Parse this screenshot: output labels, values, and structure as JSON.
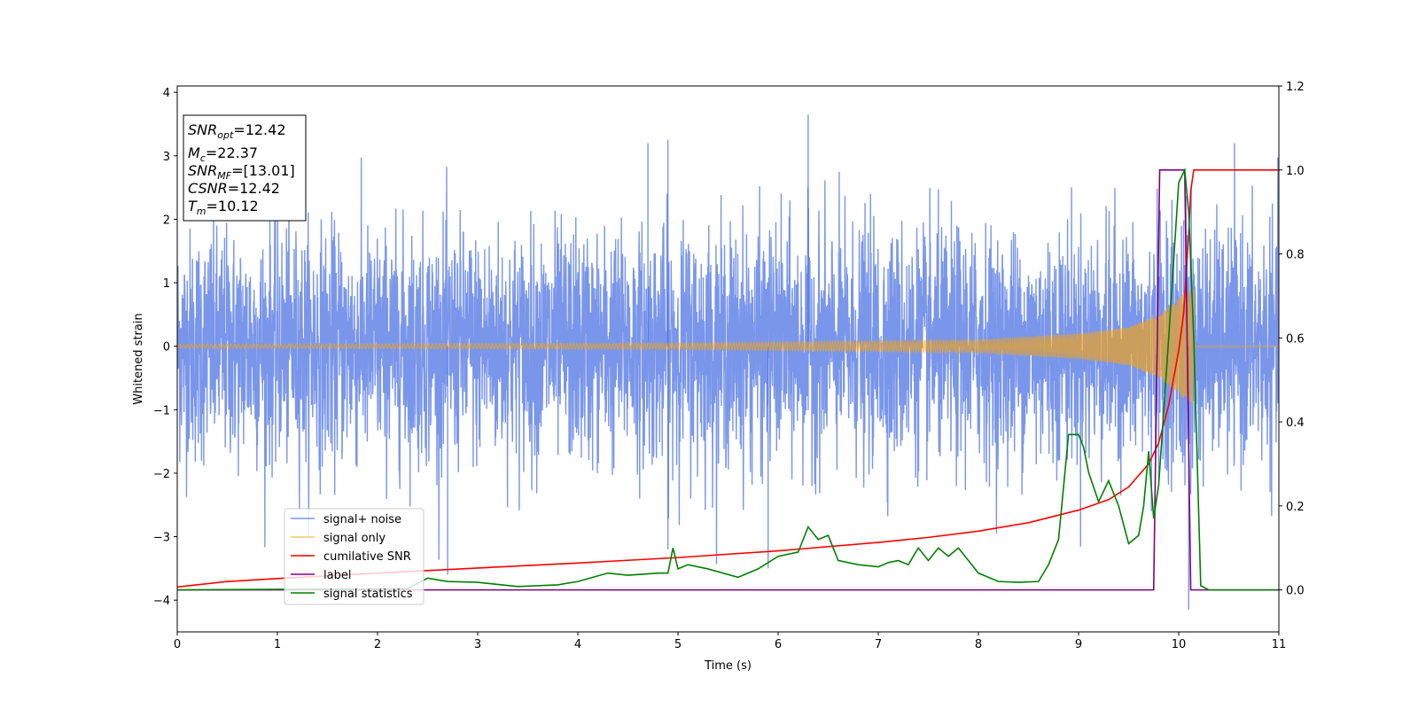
{
  "chart_data": {
    "type": "line",
    "xlabel": "Time (s)",
    "ylabel": "Whitened strain",
    "xlim": [
      0,
      11
    ],
    "ylim": [
      -4.5,
      4.1
    ],
    "y2lim": [
      -0.1,
      1.2
    ],
    "x_ticks": [
      0,
      1,
      2,
      3,
      4,
      5,
      6,
      7,
      8,
      9,
      10,
      11
    ],
    "x_tick_labels": [
      "0",
      "1",
      "2",
      "3",
      "4",
      "5",
      "6",
      "7",
      "8",
      "9",
      "10",
      "11"
    ],
    "y_ticks": [
      4,
      3,
      2,
      1,
      0,
      -1,
      -2,
      -3,
      -4
    ],
    "y_tick_labels": [
      "4",
      "3",
      "2",
      "1",
      "0",
      "−1",
      "−2",
      "−3",
      "−4"
    ],
    "y2_ticks": [
      1.2,
      1.0,
      0.8,
      0.6,
      0.4,
      0.2,
      0.0
    ],
    "y2_tick_labels": [
      "1.2",
      "1.0",
      "0.8",
      "0.6",
      "0.4",
      "0.2",
      "0.0"
    ],
    "grid": false,
    "legend_placement": "lower-left",
    "annotation": {
      "snr_opt": {
        "base": "SNR",
        "sub": "opt",
        "value": "=12.42"
      },
      "mc": {
        "base": "M",
        "sub": "c",
        "value": "=22.37"
      },
      "snr_mf": {
        "base": "SNR",
        "sub": "MF",
        "value": "=[13.01]"
      },
      "csnr": {
        "base": "CSNR",
        "value": "=12.42"
      },
      "tm": {
        "base": "T",
        "sub": "m",
        "value": "=10.12"
      }
    },
    "series": [
      {
        "name": "signal+ noise",
        "axis": "left",
        "color": "#4169e1",
        "opacity": 0.7,
        "style": "dense noisy trace, approximately zero-mean",
        "envelope_y": [
          -2.3,
          2.4
        ],
        "peak_points": [
          [
            6.3,
            3.65
          ],
          [
            4.9,
            3.25
          ],
          [
            4.7,
            3.2
          ],
          [
            10.1,
            -4.15
          ],
          [
            2.7,
            -3.6
          ],
          [
            4.9,
            -3.2
          ],
          [
            5.9,
            -3.5
          ]
        ]
      },
      {
        "name": "signal only",
        "axis": "left",
        "color": "#ffa500",
        "opacity": 0.6,
        "style": "chirp that grows in amplitude and frequency, ending at about 10.15 s",
        "amplitude_points": [
          [
            0,
            0.03
          ],
          [
            5,
            0.05
          ],
          [
            8,
            0.1
          ],
          [
            9,
            0.2
          ],
          [
            9.5,
            0.3
          ],
          [
            9.8,
            0.5
          ],
          [
            10.0,
            0.75
          ],
          [
            10.1,
            0.9
          ],
          [
            10.15,
            0.9
          ]
        ]
      },
      {
        "name": "cumilative SNR",
        "axis": "right",
        "color": "#ff0000",
        "points": [
          [
            0,
            0.007
          ],
          [
            0.5,
            0.02
          ],
          [
            1,
            0.027
          ],
          [
            2,
            0.04
          ],
          [
            3,
            0.052
          ],
          [
            4,
            0.064
          ],
          [
            5,
            0.077
          ],
          [
            6,
            0.093
          ],
          [
            7,
            0.113
          ],
          [
            7.5,
            0.125
          ],
          [
            8,
            0.14
          ],
          [
            8.5,
            0.16
          ],
          [
            9,
            0.19
          ],
          [
            9.3,
            0.215
          ],
          [
            9.5,
            0.245
          ],
          [
            9.7,
            0.3
          ],
          [
            9.8,
            0.35
          ],
          [
            9.9,
            0.44
          ],
          [
            10.0,
            0.57
          ],
          [
            10.05,
            0.66
          ],
          [
            10.1,
            0.85
          ],
          [
            10.12,
            0.95
          ],
          [
            10.15,
            1.0
          ],
          [
            11,
            1.0
          ]
        ]
      },
      {
        "name": "label",
        "axis": "right",
        "color": "#800080",
        "points": [
          [
            0,
            0.0
          ],
          [
            9.75,
            0.0
          ],
          [
            9.81,
            1.0
          ],
          [
            10.06,
            1.0
          ],
          [
            10.12,
            0.0
          ],
          [
            11,
            0.0
          ]
        ]
      },
      {
        "name": "signal statistics",
        "axis": "right",
        "color": "#008000",
        "points": [
          [
            0,
            0.0
          ],
          [
            2.3,
            0.003
          ],
          [
            2.5,
            0.028
          ],
          [
            2.7,
            0.02
          ],
          [
            3.0,
            0.018
          ],
          [
            3.4,
            0.008
          ],
          [
            3.8,
            0.012
          ],
          [
            4.0,
            0.02
          ],
          [
            4.3,
            0.04
          ],
          [
            4.5,
            0.035
          ],
          [
            4.8,
            0.04
          ],
          [
            4.9,
            0.04
          ],
          [
            4.95,
            0.1
          ],
          [
            5.0,
            0.05
          ],
          [
            5.1,
            0.06
          ],
          [
            5.3,
            0.05
          ],
          [
            5.6,
            0.03
          ],
          [
            5.8,
            0.05
          ],
          [
            6.0,
            0.08
          ],
          [
            6.2,
            0.09
          ],
          [
            6.3,
            0.15
          ],
          [
            6.4,
            0.12
          ],
          [
            6.5,
            0.13
          ],
          [
            6.6,
            0.07
          ],
          [
            6.8,
            0.06
          ],
          [
            7.0,
            0.055
          ],
          [
            7.1,
            0.065
          ],
          [
            7.2,
            0.07
          ],
          [
            7.3,
            0.06
          ],
          [
            7.4,
            0.1
          ],
          [
            7.5,
            0.07
          ],
          [
            7.6,
            0.1
          ],
          [
            7.7,
            0.08
          ],
          [
            7.8,
            0.1
          ],
          [
            8.0,
            0.04
          ],
          [
            8.2,
            0.02
          ],
          [
            8.4,
            0.018
          ],
          [
            8.6,
            0.02
          ],
          [
            8.7,
            0.06
          ],
          [
            8.8,
            0.12
          ],
          [
            8.9,
            0.37
          ],
          [
            9.0,
            0.37
          ],
          [
            9.05,
            0.34
          ],
          [
            9.1,
            0.28
          ],
          [
            9.2,
            0.21
          ],
          [
            9.3,
            0.26
          ],
          [
            9.4,
            0.2
          ],
          [
            9.5,
            0.11
          ],
          [
            9.6,
            0.13
          ],
          [
            9.65,
            0.2
          ],
          [
            9.7,
            0.33
          ],
          [
            9.75,
            0.17
          ],
          [
            9.8,
            0.25
          ],
          [
            9.9,
            0.6
          ],
          [
            10.0,
            0.97
          ],
          [
            10.06,
            1.0
          ],
          [
            10.1,
            0.9
          ],
          [
            10.15,
            0.6
          ],
          [
            10.22,
            0.01
          ],
          [
            10.3,
            0.0
          ],
          [
            11,
            0.0
          ]
        ]
      }
    ]
  }
}
